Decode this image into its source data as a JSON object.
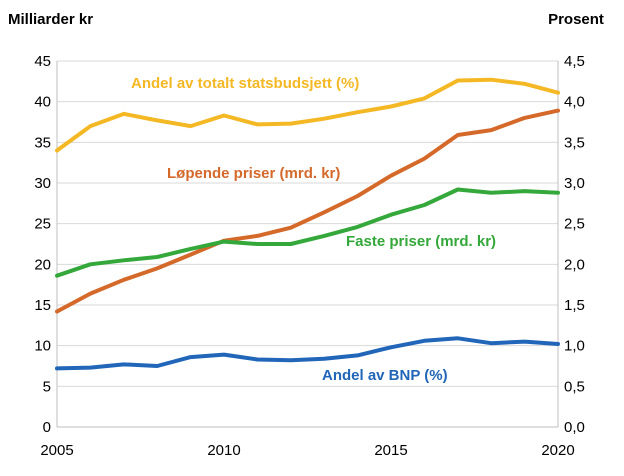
{
  "chart_data": {
    "type": "line",
    "title": "",
    "xlabel": "",
    "ylabel_left": "Milliarder kr",
    "ylabel_right": "Prosent",
    "xlim": [
      2005,
      2020
    ],
    "ylim_left": [
      0,
      45
    ],
    "ylim_right": [
      0,
      4.5
    ],
    "grid": "horizontal",
    "x_ticks": [
      "2005",
      "2010",
      "2015",
      "2020"
    ],
    "x_tick_values": [
      2005,
      2010,
      2015,
      2020
    ],
    "y_left_ticks": [
      "0",
      "5",
      "10",
      "15",
      "20",
      "25",
      "30",
      "35",
      "40",
      "45"
    ],
    "y_left_tick_values": [
      0,
      5,
      10,
      15,
      20,
      25,
      30,
      35,
      40,
      45
    ],
    "y_right_ticks": [
      "0,0",
      "0,5",
      "1,0",
      "1,5",
      "2,0",
      "2,5",
      "3,0",
      "3,5",
      "4,0",
      "4,5"
    ],
    "y_right_tick_values": [
      0,
      0.5,
      1,
      1.5,
      2,
      2.5,
      3,
      3.5,
      4,
      4.5
    ],
    "x": [
      2005,
      2006,
      2007,
      2008,
      2009,
      2010,
      2011,
      2012,
      2013,
      2014,
      2015,
      2016,
      2017,
      2018,
      2019,
      2020
    ],
    "series": [
      {
        "id": "andel-statsbudsjett",
        "name": "Andel av totalt statsbudsjett (%)",
        "axis": "right",
        "color": "#F4B824",
        "values": [
          3.4,
          3.7,
          3.85,
          3.77,
          3.7,
          3.83,
          3.72,
          3.73,
          3.79,
          3.87,
          3.94,
          4.04,
          4.26,
          4.27,
          4.22,
          4.11
        ]
      },
      {
        "id": "lopende-priser",
        "name": "Løpende priser (mrd. kr)",
        "axis": "left",
        "color": "#D4692A",
        "values": [
          14.2,
          16.4,
          18.1,
          19.5,
          21.2,
          22.9,
          23.5,
          24.5,
          26.4,
          28.4,
          30.9,
          33.0,
          35.9,
          36.5,
          38.0,
          38.9
        ]
      },
      {
        "id": "faste-priser",
        "name": "Faste priser (mrd. kr)",
        "axis": "left",
        "color": "#34A83A",
        "values": [
          18.6,
          20.0,
          20.5,
          20.9,
          21.9,
          22.8,
          22.5,
          22.5,
          23.5,
          24.6,
          26.1,
          27.3,
          29.2,
          28.8,
          29.0,
          28.8
        ]
      },
      {
        "id": "andel-bnp",
        "name": "Andel av BNP (%)",
        "axis": "right",
        "color": "#2166B8",
        "values": [
          0.72,
          0.73,
          0.77,
          0.75,
          0.86,
          0.89,
          0.83,
          0.82,
          0.84,
          0.88,
          0.98,
          1.06,
          1.09,
          1.03,
          1.05,
          1.02
        ]
      }
    ]
  }
}
